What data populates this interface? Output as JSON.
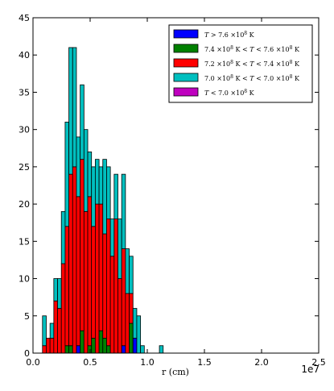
{
  "chart_data": {
    "type": "bar",
    "stacked": true,
    "xlabel": "r  (cm)",
    "x_offset_label": "1e7",
    "xlim": [
      0,
      2.5
    ],
    "ylim": [
      0,
      45
    ],
    "xticks": [
      "0.0",
      "0.5",
      "1.0",
      "1.5",
      "2.0",
      "2.5"
    ],
    "yticks": [
      "0",
      "5",
      "10",
      "15",
      "20",
      "25",
      "30",
      "35",
      "40",
      "45"
    ],
    "grid": false,
    "legend_position": "top-right",
    "bin_width": 0.033,
    "bins": [
      0.05,
      0.083,
      0.116,
      0.149,
      0.182,
      0.215,
      0.248,
      0.281,
      0.314,
      0.347,
      0.38,
      0.413,
      0.446,
      0.479,
      0.512,
      0.545,
      0.578,
      0.611,
      0.644,
      0.677,
      0.71,
      0.743,
      0.776,
      0.809,
      0.842,
      0.875,
      0.908,
      0.941,
      0.974,
      1.007,
      1.04,
      1.073,
      1.106
    ],
    "series": [
      {
        "name": "T > 7.6×10⁸ K",
        "color": "#0000ff",
        "values": [
          0,
          0,
          0,
          0,
          0,
          0,
          0,
          0,
          0,
          0,
          1,
          0,
          0,
          0,
          0,
          0,
          0,
          0,
          0,
          0,
          0,
          0,
          1,
          0,
          0,
          2,
          0,
          0,
          0,
          0,
          0,
          0,
          0
        ]
      },
      {
        "name": "7.4×10⁸ K < T < 7.6×10⁸ K",
        "color": "#008000",
        "values": [
          0,
          0,
          0,
          0,
          0,
          0,
          0,
          1,
          1,
          0,
          0,
          3,
          0,
          1,
          2,
          0,
          3,
          2,
          1,
          0,
          0,
          0,
          0,
          0,
          4,
          0,
          0,
          0,
          0,
          0,
          0,
          0,
          0
        ]
      },
      {
        "name": "7.2×10⁸ K < T < 7.4×10⁸ K",
        "color": "#ff0000",
        "values": [
          0,
          1,
          2,
          2,
          7,
          6,
          12,
          16,
          23,
          25,
          20,
          23,
          19,
          20,
          15,
          20,
          17,
          14,
          17,
          13,
          18,
          10,
          13,
          8,
          4,
          0,
          0,
          0,
          0,
          0,
          0,
          0,
          0
        ]
      },
      {
        "name": "7.0×10⁸ K < T < 7.0×10⁸ K",
        "color": "#00bfbf",
        "values": [
          0,
          4,
          0,
          2,
          3,
          4,
          7,
          14,
          17,
          16,
          8,
          10,
          11,
          6,
          8,
          6,
          5,
          10,
          7,
          5,
          6,
          8,
          10,
          6,
          5,
          4,
          5,
          1,
          0,
          0,
          0,
          0,
          1
        ]
      },
      {
        "name": "T < 7.0×10⁸ K",
        "color": "#bf00bf",
        "values": [
          0,
          0,
          0,
          0,
          0,
          0,
          0,
          0,
          0,
          0,
          0,
          0,
          0,
          0,
          0,
          0,
          0,
          0,
          0,
          0,
          0,
          0,
          0,
          0,
          0,
          0,
          0,
          0,
          0,
          0,
          0,
          0,
          0
        ]
      }
    ],
    "legend": [
      {
        "pre": "",
        "italic": "T",
        "post": " > 7.6 ×10",
        "sup": "8",
        "tail": "  K"
      },
      {
        "pre": "7.4 ×10",
        "sup1": "8",
        "mid": "  K  < ",
        "italic": "T",
        "post": " < 7.6 ×10",
        "sup": "8",
        "tail": "  K"
      },
      {
        "pre": "7.2 ×10",
        "sup1": "8",
        "mid": "  K  < ",
        "italic": "T",
        "post": " < 7.4 ×10",
        "sup": "8",
        "tail": "  K"
      },
      {
        "pre": "7.0 ×10",
        "sup1": "8",
        "mid": "  K  < ",
        "italic": "T",
        "post": " < 7.0 ×10",
        "sup": "8",
        "tail": "  K"
      },
      {
        "pre": "",
        "italic": "T",
        "post": " < 7.0 ×10",
        "sup": "8",
        "tail": "  K"
      }
    ]
  }
}
